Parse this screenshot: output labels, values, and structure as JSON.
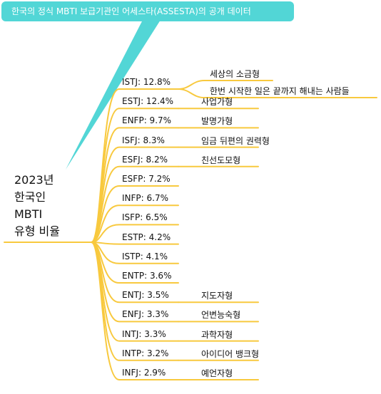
{
  "colors": {
    "callout": "#52d6d6",
    "branch": "#f8c93e",
    "text": "#111111"
  },
  "callout": {
    "text": "한국의 정식 MBTI 보급기관인 어세스타(ASSESTA)의 공개 데이터"
  },
  "root": {
    "lines": [
      "2023년",
      "한국인",
      "MBTI",
      "유형 비율"
    ]
  },
  "chart_data": {
    "type": "mindmap",
    "root": "2023년 한국인 MBTI 유형 비율",
    "branches": [
      {
        "label": "ISTJ: 12.8%",
        "type": "ISTJ",
        "percent": 12.8,
        "children": [
          "세상의 소금형",
          "한번 시작한 일은 끝까지 해내는 사람들"
        ]
      },
      {
        "label": "ESTJ: 12.4%",
        "type": "ESTJ",
        "percent": 12.4,
        "children": [
          "사업가형"
        ]
      },
      {
        "label": "ENFP: 9.7%",
        "type": "ENFP",
        "percent": 9.7,
        "children": [
          "발명가형"
        ]
      },
      {
        "label": "ISFJ: 8.3%",
        "type": "ISFJ",
        "percent": 8.3,
        "children": [
          "임금 뒤편의 권력형"
        ]
      },
      {
        "label": "ESFJ: 8.2%",
        "type": "ESFJ",
        "percent": 8.2,
        "children": [
          "친선도모형"
        ]
      },
      {
        "label": "ESFP: 7.2%",
        "type": "ESFP",
        "percent": 7.2,
        "children": []
      },
      {
        "label": "INFP: 6.7%",
        "type": "INFP",
        "percent": 6.7,
        "children": []
      },
      {
        "label": "ISFP: 6.5%",
        "type": "ISFP",
        "percent": 6.5,
        "children": []
      },
      {
        "label": "ESTP: 4.2%",
        "type": "ESTP",
        "percent": 4.2,
        "children": []
      },
      {
        "label": "ISTP: 4.1%",
        "type": "ISTP",
        "percent": 4.1,
        "children": []
      },
      {
        "label": "ENTP: 3.6%",
        "type": "ENTP",
        "percent": 3.6,
        "children": []
      },
      {
        "label": "ENTJ: 3.5%",
        "type": "ENTJ",
        "percent": 3.5,
        "children": [
          "지도자형"
        ]
      },
      {
        "label": "ENFJ: 3.3%",
        "type": "ENFJ",
        "percent": 3.3,
        "children": [
          "언변능숙형"
        ]
      },
      {
        "label": "INTJ: 3.3%",
        "type": "INTJ",
        "percent": 3.3,
        "children": [
          "과학자형"
        ]
      },
      {
        "label": "INTP: 3.2%",
        "type": "INTP",
        "percent": 3.2,
        "children": [
          "아이디어 뱅크형"
        ]
      },
      {
        "label": "INFJ: 2.9%",
        "type": "INFJ",
        "percent": 2.9,
        "children": [
          "예언자형"
        ]
      }
    ]
  }
}
